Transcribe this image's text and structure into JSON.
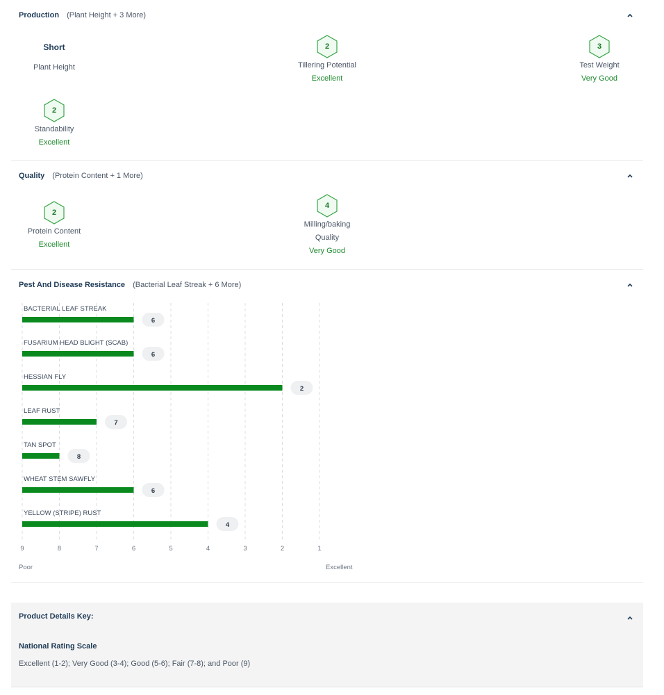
{
  "production": {
    "title": "Production",
    "subtitle": "(Plant Height + 3 More)",
    "plant_height": {
      "value": "Short",
      "label": "Plant Height"
    },
    "tillering": {
      "score": "2",
      "label": "Tillering Potential",
      "rating": "Excellent"
    },
    "test_weight": {
      "score": "3",
      "label": "Test Weight",
      "rating": "Very Good"
    },
    "standability": {
      "score": "2",
      "label": "Standability",
      "rating": "Excellent"
    }
  },
  "quality": {
    "title": "Quality",
    "subtitle": "(Protein Content + 1 More)",
    "protein": {
      "score": "2",
      "label": "Protein Content",
      "rating": "Excellent"
    },
    "milling": {
      "score": "4",
      "label_line1": "Milling/baking",
      "label_line2": "Quality",
      "rating": "Very Good"
    }
  },
  "pest": {
    "title": "Pest And Disease Resistance",
    "subtitle": "(Bacterial Leaf Streak + 6 More)",
    "scale_low": "Poor",
    "scale_high": "Excellent"
  },
  "chart_data": {
    "type": "bar",
    "orientation": "horizontal",
    "categories": [
      "BACTERIAL LEAF STREAK",
      "FUSARIUM HEAD BLIGHT (SCAB)",
      "HESSIAN FLY",
      "LEAF RUST",
      "TAN SPOT",
      "WHEAT STEM SAWFLY",
      "YELLOW (STRIPE) RUST"
    ],
    "values": [
      6,
      6,
      2,
      7,
      8,
      6,
      4
    ],
    "xticks": [
      9,
      8,
      7,
      6,
      5,
      4,
      3,
      2,
      1
    ],
    "xlim": [
      9,
      1
    ],
    "grid": true,
    "bar_color": "#0a8a1e"
  },
  "key": {
    "title": "Product Details Key:",
    "scale_title": "National Rating Scale",
    "scale_text": "Excellent (1-2); Very Good (3-4); Good (5-6); Fair (7-8); and Poor (9)"
  },
  "colors": {
    "accent_green": "#1f8a2e",
    "hex_fill": "#effaf0",
    "hex_stroke": "#3aa54a"
  }
}
